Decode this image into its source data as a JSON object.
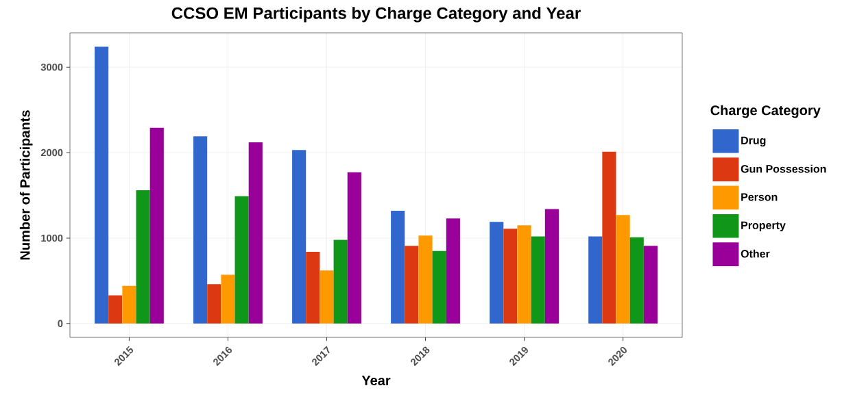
{
  "chart_data": {
    "type": "bar",
    "title": "CCSO EM Participants by Charge Category and Year",
    "xlabel": "Year",
    "ylabel": "Number of Participants",
    "legend_title": "Charge Category",
    "categories": [
      "2015",
      "2016",
      "2017",
      "2018",
      "2019",
      "2020"
    ],
    "series": [
      {
        "name": "Drug",
        "color": "#3166cc",
        "values": [
          3240,
          2190,
          2030,
          1320,
          1190,
          1020
        ]
      },
      {
        "name": "Gun Possession",
        "color": "#dc3912",
        "values": [
          330,
          460,
          840,
          910,
          1110,
          2010
        ]
      },
      {
        "name": "Person",
        "color": "#ff9900",
        "values": [
          440,
          570,
          620,
          1030,
          1150,
          1270
        ]
      },
      {
        "name": "Property",
        "color": "#109618",
        "values": [
          1560,
          1490,
          980,
          850,
          1020,
          1010
        ]
      },
      {
        "name": "Other",
        "color": "#990099",
        "values": [
          2290,
          2120,
          1770,
          1230,
          1340,
          910
        ]
      }
    ],
    "ylim": [
      -162,
      3402
    ],
    "yticks": [
      0,
      1000,
      2000,
      3000
    ],
    "grid": true,
    "legend": "right"
  }
}
